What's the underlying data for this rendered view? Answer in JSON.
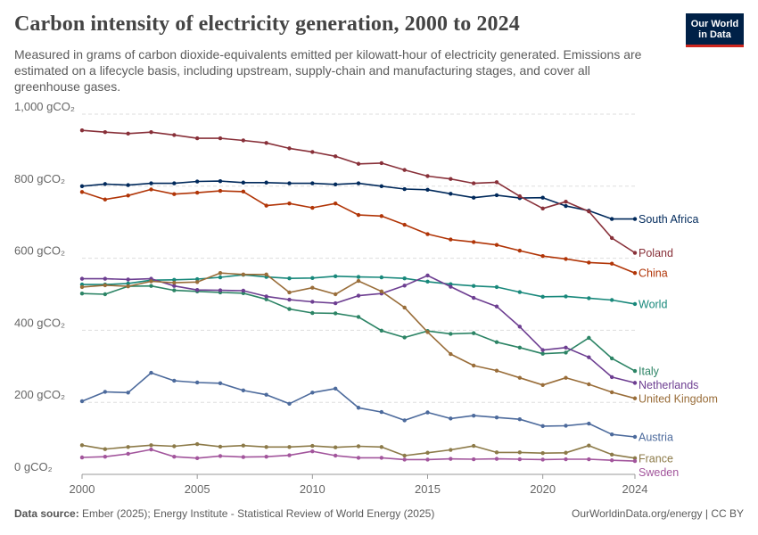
{
  "header": {
    "title": "Carbon intensity of electricity generation, 2000 to 2024",
    "subtitle": "Measured in grams of carbon dioxide-equivalents emitted per kilowatt-hour of electricity generated. Emissions are estimated on a lifecycle basis, including upstream, supply-chain and manufacturing stages, and cover all greenhouse gases.",
    "logo_line1": "Our World",
    "logo_line2": "in Data"
  },
  "footer": {
    "source_label": "Data source:",
    "source_text": "Ember (2025); Energy Institute - Statistical Review of World Energy (2025)",
    "credit": "OurWorldinData.org/energy | CC BY"
  },
  "chart_data": {
    "type": "line",
    "title": "Carbon intensity of electricity generation, 2000 to 2024",
    "xlabel": "",
    "ylabel": "",
    "xlim": [
      2000,
      2024
    ],
    "ylim": [
      0,
      1000
    ],
    "x_ticks": [
      2000,
      2005,
      2010,
      2015,
      2020,
      2024
    ],
    "y_ticks": [
      0,
      200,
      400,
      600,
      800,
      1000
    ],
    "y_tick_labels": [
      "0 gCO₂",
      "200 gCO₂",
      "400 gCO₂",
      "600 gCO₂",
      "800 gCO₂",
      "1,000 gCO₂"
    ],
    "grid": "horizontal dashed",
    "legend": "labels at right end of lines",
    "x": [
      2000,
      2001,
      2002,
      2003,
      2004,
      2005,
      2006,
      2007,
      2008,
      2009,
      2010,
      2011,
      2012,
      2013,
      2014,
      2015,
      2016,
      2017,
      2018,
      2019,
      2020,
      2021,
      2022,
      2023,
      2024
    ],
    "series": [
      {
        "name": "South Africa",
        "color": "#00295b",
        "values": [
          800,
          806,
          803,
          808,
          808,
          813,
          814,
          810,
          810,
          808,
          808,
          805,
          808,
          800,
          792,
          790,
          779,
          768,
          775,
          767,
          768,
          745,
          732,
          709,
          709
        ]
      },
      {
        "name": "Poland",
        "color": "#883039",
        "values": [
          955,
          950,
          946,
          950,
          942,
          933,
          933,
          927,
          920,
          905,
          895,
          883,
          862,
          864,
          845,
          828,
          820,
          808,
          811,
          772,
          738,
          757,
          730,
          656,
          615
        ]
      },
      {
        "name": "China",
        "color": "#b13507",
        "values": [
          784,
          763,
          774,
          791,
          778,
          782,
          787,
          785,
          746,
          752,
          740,
          752,
          720,
          717,
          693,
          667,
          652,
          645,
          637,
          621,
          606,
          598,
          588,
          585,
          559
        ]
      },
      {
        "name": "World",
        "color": "#18887b",
        "values": [
          527,
          527,
          530,
          539,
          540,
          542,
          547,
          554,
          548,
          544,
          545,
          550,
          548,
          547,
          544,
          535,
          528,
          523,
          520,
          506,
          493,
          494,
          489,
          484,
          473
        ]
      },
      {
        "name": "Italy",
        "color": "#2c8465",
        "values": [
          502,
          500,
          522,
          523,
          511,
          508,
          505,
          503,
          486,
          459,
          448,
          447,
          437,
          399,
          380,
          398,
          390,
          392,
          367,
          352,
          335,
          338,
          379,
          322,
          287
        ]
      },
      {
        "name": "Netherlands",
        "color": "#6d3e91",
        "values": [
          543,
          543,
          541,
          543,
          523,
          512,
          511,
          510,
          494,
          485,
          479,
          475,
          496,
          502,
          524,
          552,
          521,
          490,
          466,
          410,
          345,
          352,
          325,
          270,
          254
        ]
      },
      {
        "name": "United Kingdom",
        "color": "#996d39",
        "values": [
          520,
          525,
          522,
          536,
          532,
          534,
          559,
          555,
          555,
          505,
          518,
          500,
          537,
          508,
          463,
          395,
          334,
          302,
          288,
          268,
          248,
          268,
          250,
          228,
          211
        ]
      },
      {
        "name": "Austria",
        "color": "#4c6a9c",
        "values": [
          203,
          229,
          227,
          282,
          260,
          255,
          253,
          233,
          221,
          196,
          227,
          238,
          185,
          173,
          150,
          172,
          155,
          163,
          158,
          153,
          134,
          135,
          141,
          111,
          104
        ]
      },
      {
        "name": "France",
        "color": "#8c7a48",
        "values": [
          81,
          70,
          76,
          81,
          78,
          84,
          77,
          80,
          76,
          76,
          79,
          75,
          78,
          76,
          52,
          60,
          68,
          79,
          61,
          61,
          59,
          60,
          80,
          55,
          45
        ]
      },
      {
        "name": "Sweden",
        "color": "#a2559c",
        "values": [
          47,
          49,
          57,
          69,
          49,
          45,
          51,
          48,
          49,
          53,
          64,
          52,
          46,
          46,
          41,
          41,
          43,
          42,
          43,
          42,
          41,
          42,
          42,
          39,
          37
        ]
      }
    ]
  }
}
